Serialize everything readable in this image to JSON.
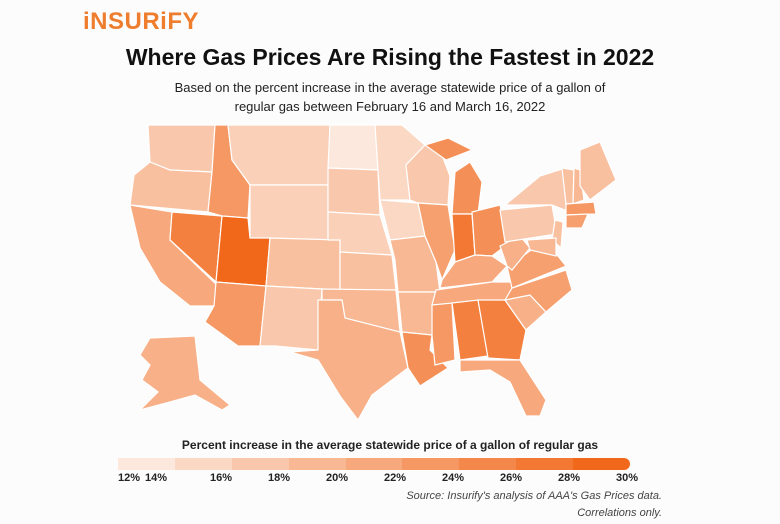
{
  "logo": "iNSURiFY",
  "title": "Where Gas Prices Are Rising the Fastest in 2022",
  "subtitle_line1": "Based on the percent increase in the average statewide price of a gallon of",
  "subtitle_line2": "regular gas between February 16 and March 16, 2022",
  "legend": {
    "title": "Percent increase in the average statewide price of a gallon of regular gas",
    "ticks": [
      "12%",
      "14%",
      "16%",
      "18%",
      "20%",
      "22%",
      "24%",
      "26%",
      "28%",
      "30%"
    ],
    "min": 12,
    "max": 30,
    "color_low": "#fdf0e8",
    "color_high": "#f0600f"
  },
  "source_line1": "Source: Insurify's analysis of AAA's Gas Prices data.",
  "source_line2": "Correlations only.",
  "chart_data": {
    "type": "choropleth",
    "unit": "percent increase",
    "values": {
      "WA": 17,
      "OR": 18,
      "CA": 21,
      "NV": 26,
      "ID": 23,
      "MT": 16,
      "WY": 16,
      "UT": 29,
      "AZ": 23,
      "CO": 18,
      "NM": 17,
      "ND": 13,
      "SD": 17,
      "NE": 16,
      "KS": 18,
      "OK": 19,
      "TX": 20,
      "MN": 15,
      "IA": 15,
      "MO": 19,
      "AR": 19,
      "LA": 24,
      "WI": 17,
      "IL": 22,
      "MI": 24,
      "IN": 27,
      "OH": 24,
      "KY": 21,
      "TN": 21,
      "MS": 23,
      "AL": 26,
      "GA": 26,
      "FL": 21,
      "SC": 20,
      "NC": 22,
      "VA": 22,
      "WV": 20,
      "PA": 17,
      "NY": 17,
      "VT": 18,
      "NH": 19,
      "ME": 18,
      "MA": 23,
      "CT": 22,
      "NJ": 18,
      "MD": 19,
      "AK": 20
    }
  }
}
